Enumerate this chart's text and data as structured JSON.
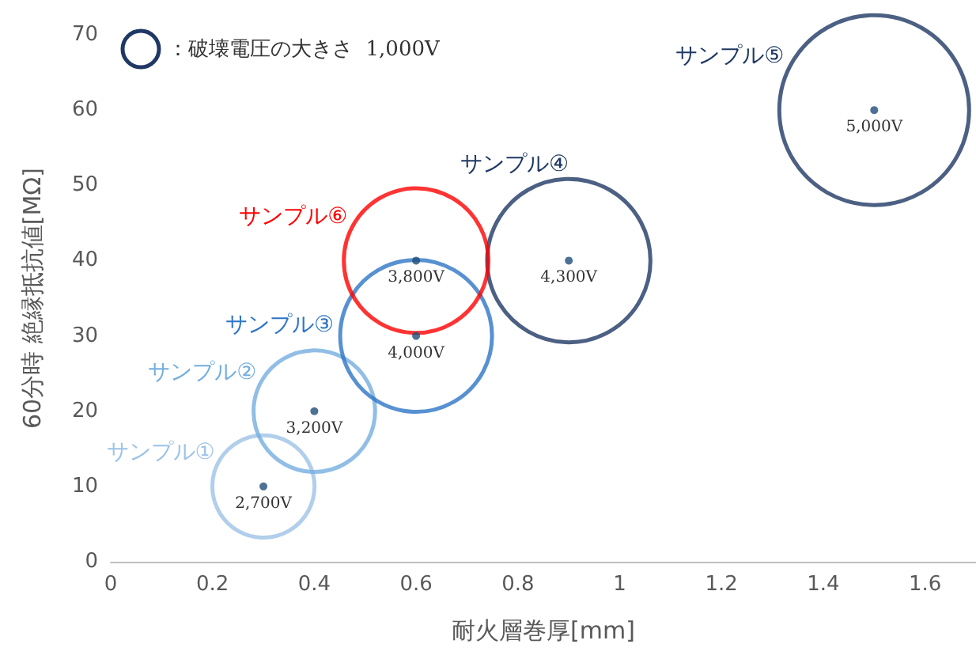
{
  "chart_data": {
    "type": "bubble",
    "xlabel": "耐火層巻厚[mm]",
    "ylabel": "60分時 絶縁抵抗値[MΩ]",
    "legend_title": "：破壊電圧の大きさ  1,000V",
    "xlim": [
      0,
      1.7
    ],
    "xticks": [
      0,
      0.2,
      0.4,
      0.6,
      0.8,
      1,
      1.2,
      1.4,
      1.6
    ],
    "ylim": [
      0,
      70
    ],
    "yticks": [
      0,
      10,
      20,
      30,
      40,
      50,
      60,
      70
    ],
    "grid": false,
    "legend": "top left",
    "annotations": [
      {
        "text": "2,700V",
        "x": 0.3,
        "y": 10
      },
      {
        "text": "3,200V",
        "x": 0.4,
        "y": 20
      },
      {
        "text": "4,000V",
        "x": 0.6,
        "y": 30
      },
      {
        "text": "4,300V",
        "x": 0.9,
        "y": 40
      },
      {
        "text": "5,000V",
        "x": 1.5,
        "y": 60
      },
      {
        "text": "3,800V",
        "x": 0.6,
        "y": 40
      }
    ],
    "series": [
      {
        "name": "サンプル①",
        "color": "#9dc3e6",
        "x": [
          0.3
        ],
        "values": [
          10
        ],
        "sizes": [
          0.29
        ]
      },
      {
        "name": "サンプル②",
        "color": "#74aee0",
        "x": [
          0.4
        ],
        "values": [
          20
        ],
        "sizes": [
          0.41
        ]
      },
      {
        "name": "サンプル③",
        "color": "#2e75c6",
        "x": [
          0.6
        ],
        "values": [
          30
        ],
        "sizes": [
          0.64
        ]
      },
      {
        "name": "サンプル④",
        "color": "#1f3864",
        "x": [
          0.9
        ],
        "values": [
          40
        ],
        "sizes": [
          0.74
        ]
      },
      {
        "name": "サンプル⑤",
        "color": "#1f3864",
        "x": [
          1.5
        ],
        "values": [
          60
        ],
        "sizes": [
          1
        ]
      },
      {
        "name": "サンプル⑥",
        "color": "#ff0000",
        "x": [
          0.6
        ],
        "values": [
          40
        ],
        "sizes": [
          0.58
        ]
      }
    ]
  }
}
